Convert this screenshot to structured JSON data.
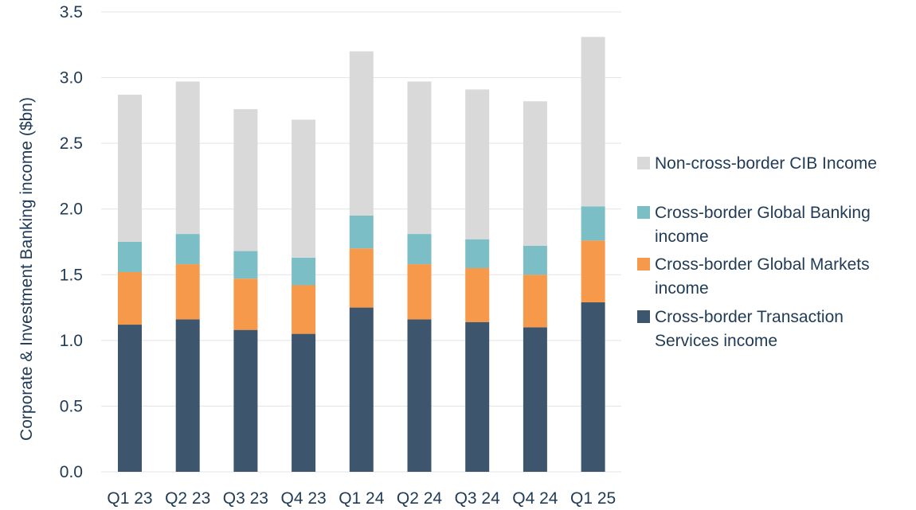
{
  "chart_data": {
    "type": "bar",
    "stacked": true,
    "ylabel": "Corporate & Investment Banking income ($bn)",
    "ylim": [
      0,
      3.5
    ],
    "yticks": [
      "0.0",
      "0.5",
      "1.0",
      "1.5",
      "2.0",
      "2.5",
      "3.0",
      "3.5"
    ],
    "grid": true,
    "legend_position": "right",
    "categories": [
      "Q1 23",
      "Q2 23",
      "Q3 23",
      "Q4 23",
      "Q1 24",
      "Q2 24",
      "Q3 24",
      "Q4 24",
      "Q1 25"
    ],
    "series": [
      {
        "name": "Cross-border Transaction Services income",
        "legend_lines": [
          "Cross-border Transaction",
          "Services income"
        ],
        "color": "#3d566e",
        "values": [
          1.12,
          1.16,
          1.08,
          1.05,
          1.25,
          1.16,
          1.14,
          1.1,
          1.29
        ]
      },
      {
        "name": "Cross-border Global Markets income",
        "legend_lines": [
          "Cross-border Global Markets",
          "income"
        ],
        "color": "#f7994a",
        "values": [
          0.4,
          0.42,
          0.39,
          0.37,
          0.45,
          0.42,
          0.41,
          0.4,
          0.47
        ]
      },
      {
        "name": "Cross-border Global Banking income",
        "legend_lines": [
          "Cross-border Global Banking",
          "income"
        ],
        "color": "#7bbec6",
        "values": [
          0.23,
          0.23,
          0.21,
          0.21,
          0.25,
          0.23,
          0.22,
          0.22,
          0.26
        ]
      },
      {
        "name": "Non-cross-border CIB Income",
        "legend_lines": [
          "Non-cross-border CIB Income"
        ],
        "color": "#d9d9d9",
        "values": [
          1.12,
          1.16,
          1.08,
          1.05,
          1.25,
          1.16,
          1.14,
          1.1,
          1.29
        ]
      }
    ]
  }
}
